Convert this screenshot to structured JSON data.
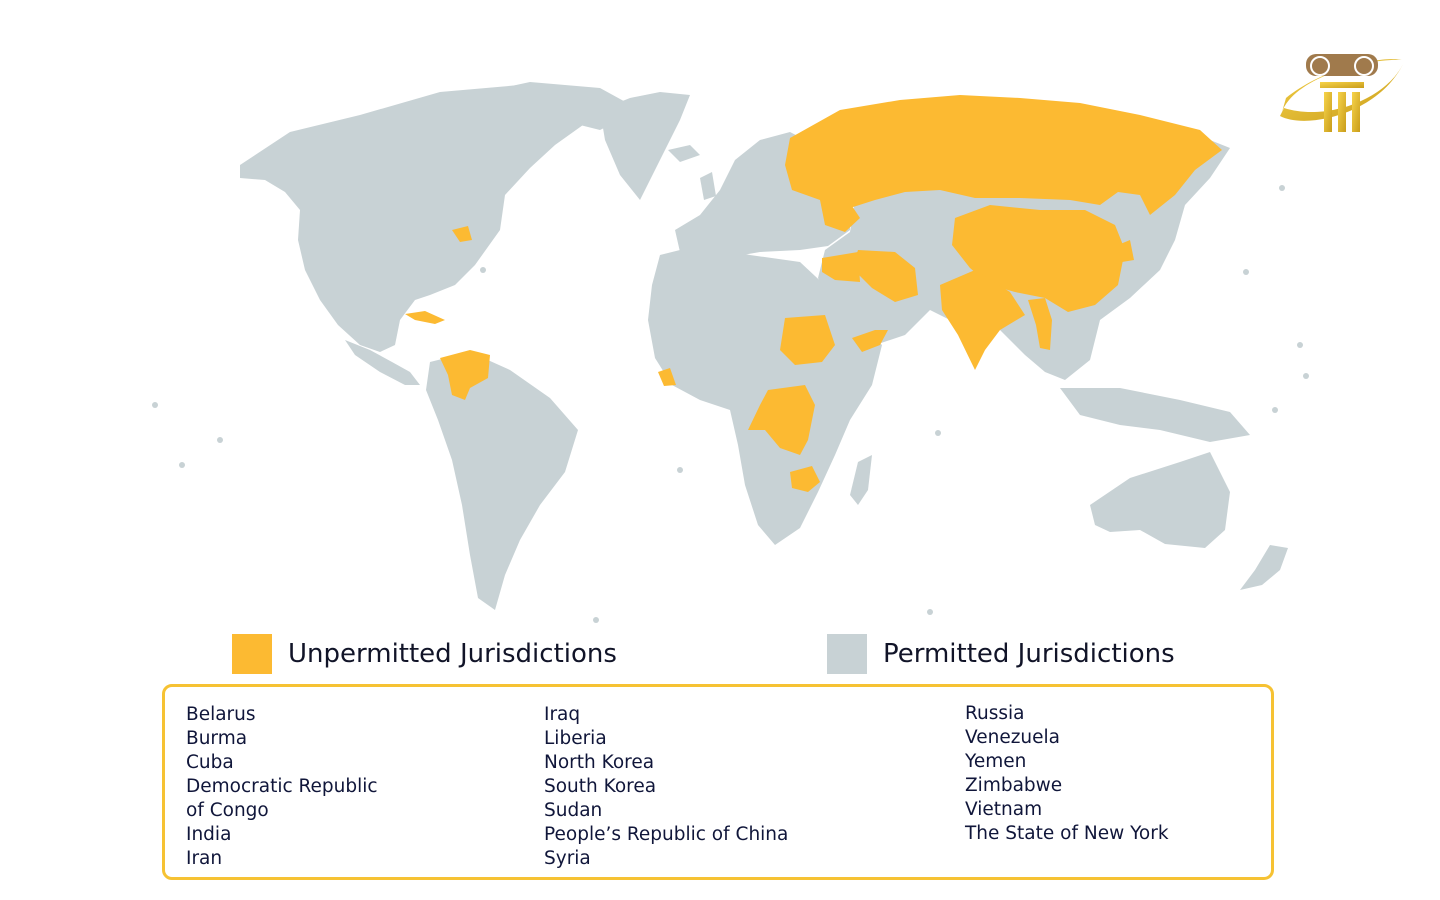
{
  "colors": {
    "unpermitted": "#fcba32",
    "permitted": "#c8d2d5",
    "box_border": "#f6c233",
    "text": "#10163a"
  },
  "legend": {
    "unpermitted_label": "Unpermitted Jurisdictions",
    "permitted_label": "Permitted Jurisdictions"
  },
  "logo": {
    "icon": "ionic-column-logo-icon"
  },
  "jurisdictions": {
    "column_1": [
      "Belarus",
      "Burma",
      "Cuba",
      "Democratic Republic",
      "of Congo",
      "India",
      "Iran"
    ],
    "column_2": [
      "Iraq",
      "Liberia",
      "North Korea",
      "South Korea",
      "Sudan",
      "People’s Republic of China",
      "Syria"
    ],
    "column_3": [
      "Russia",
      "Venezuela",
      "Yemen",
      "Zimbabwe",
      "Vietnam",
      "The State of New York"
    ]
  }
}
